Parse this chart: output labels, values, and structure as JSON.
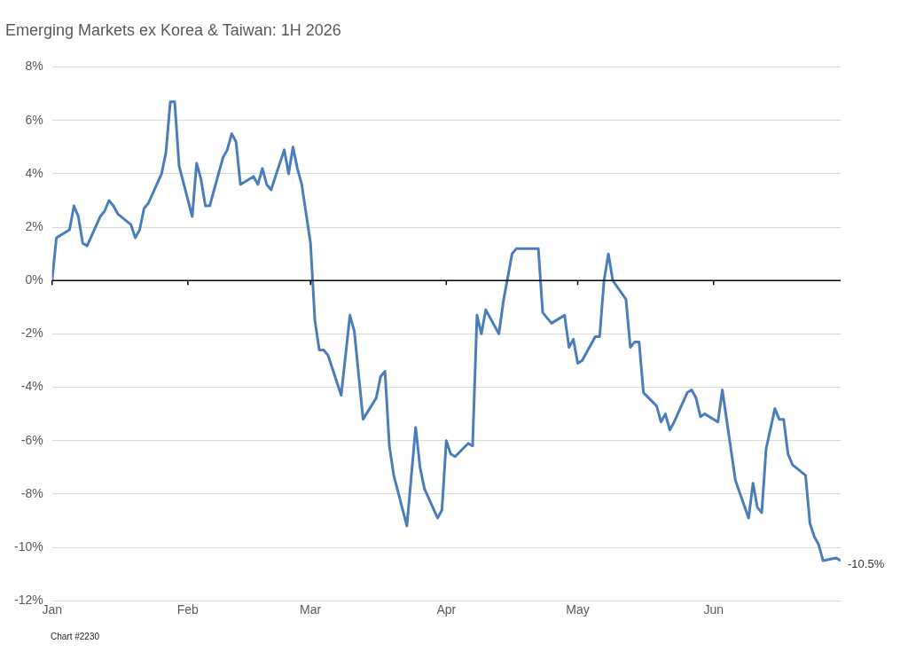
{
  "chart_data": {
    "type": "line",
    "title": "Emerging Markets ex Korea & Taiwan: 1H 2026",
    "xlim": [
      "2026-01-01",
      "2026-06-30"
    ],
    "xticks": [
      {
        "value": "2026-01-01",
        "label": "Jan"
      },
      {
        "value": "2026-02-01",
        "label": "Feb"
      },
      {
        "value": "2026-03-01",
        "label": "Mar"
      },
      {
        "value": "2026-04-01",
        "label": "Apr"
      },
      {
        "value": "2026-05-01",
        "label": "May"
      },
      {
        "value": "2026-06-01",
        "label": "Jun"
      }
    ],
    "ylim": [
      -12,
      8
    ],
    "yticks": [
      {
        "value": -12,
        "label": "-12%"
      },
      {
        "value": -10,
        "label": "-10%"
      },
      {
        "value": -8,
        "label": "-8%"
      },
      {
        "value": -6,
        "label": "-6%"
      },
      {
        "value": -4,
        "label": "-4%"
      },
      {
        "value": -2,
        "label": "-2%"
      },
      {
        "value": 0,
        "label": "0%"
      },
      {
        "value": 2,
        "label": "2%"
      },
      {
        "value": 4,
        "label": "4%"
      },
      {
        "value": 6,
        "label": "6%"
      },
      {
        "value": 8,
        "label": "8%"
      }
    ],
    "grid": "y",
    "ref_lines": [
      {
        "axis": "y",
        "value": 0,
        "color": "#000000"
      }
    ],
    "annotations": [
      "Chart #2230"
    ],
    "series": [
      {
        "color": "#4a7ebb",
        "x": [
          "2026-01-01",
          "2026-01-02",
          "2026-01-05",
          "2026-01-06",
          "2026-01-07",
          "2026-01-08",
          "2026-01-09",
          "2026-01-12",
          "2026-01-13",
          "2026-01-14",
          "2026-01-15",
          "2026-01-16",
          "2026-01-19",
          "2026-01-20",
          "2026-01-21",
          "2026-01-22",
          "2026-01-23",
          "2026-01-26",
          "2026-01-27",
          "2026-01-28",
          "2026-01-29",
          "2026-01-30",
          "2026-02-02",
          "2026-02-03",
          "2026-02-04",
          "2026-02-05",
          "2026-02-06",
          "2026-02-09",
          "2026-02-10",
          "2026-02-11",
          "2026-02-12",
          "2026-02-13",
          "2026-02-16",
          "2026-02-17",
          "2026-02-18",
          "2026-02-19",
          "2026-02-20",
          "2026-02-23",
          "2026-02-24",
          "2026-02-25",
          "2026-02-26",
          "2026-02-27",
          "2026-03-01",
          "2026-03-02",
          "2026-03-03",
          "2026-03-04",
          "2026-03-05",
          "2026-03-08",
          "2026-03-10",
          "2026-03-11",
          "2026-03-13",
          "2026-03-16",
          "2026-03-17",
          "2026-03-18",
          "2026-03-19",
          "2026-03-20",
          "2026-03-23",
          "2026-03-25",
          "2026-03-26",
          "2026-03-27",
          "2026-03-30",
          "2026-03-31",
          "2026-04-01",
          "2026-04-02",
          "2026-04-03",
          "2026-04-06",
          "2026-04-07",
          "2026-04-08",
          "2026-04-09",
          "2026-04-10",
          "2026-04-13",
          "2026-04-14",
          "2026-04-16",
          "2026-04-17",
          "2026-04-22",
          "2026-04-23",
          "2026-04-25",
          "2026-04-28",
          "2026-04-29",
          "2026-04-30",
          "2026-05-01",
          "2026-05-02",
          "2026-05-05",
          "2026-05-06",
          "2026-05-07",
          "2026-05-08",
          "2026-05-09",
          "2026-05-12",
          "2026-05-13",
          "2026-05-14",
          "2026-05-15",
          "2026-05-16",
          "2026-05-19",
          "2026-05-20",
          "2026-05-21",
          "2026-05-22",
          "2026-05-23",
          "2026-05-26",
          "2026-05-27",
          "2026-05-28",
          "2026-05-29",
          "2026-05-30",
          "2026-06-02",
          "2026-06-03",
          "2026-06-06",
          "2026-06-09",
          "2026-06-10",
          "2026-06-11",
          "2026-06-12",
          "2026-06-13",
          "2026-06-15",
          "2026-06-16",
          "2026-06-17",
          "2026-06-18",
          "2026-06-19",
          "2026-06-22",
          "2026-06-23",
          "2026-06-24",
          "2026-06-25",
          "2026-06-26",
          "2026-06-29",
          "2026-06-30"
        ],
        "values": [
          0,
          1.6,
          1.9,
          2.8,
          2.4,
          1.4,
          1.3,
          2.4,
          2.6,
          3.0,
          2.8,
          2.5,
          2.1,
          1.6,
          1.9,
          2.7,
          2.9,
          4.0,
          4.8,
          6.7,
          6.7,
          4.3,
          2.4,
          4.4,
          3.8,
          2.8,
          2.8,
          4.6,
          4.9,
          5.5,
          5.2,
          3.6,
          3.9,
          3.6,
          4.2,
          3.6,
          3.4,
          4.9,
          4.0,
          5.0,
          4.2,
          3.6,
          1.4,
          -1.5,
          -2.6,
          -2.6,
          -2.8,
          -4.3,
          -1.3,
          -1.9,
          -5.2,
          -4.4,
          -3.6,
          -3.4,
          -6.2,
          -7.3,
          -9.2,
          -5.5,
          -7.0,
          -7.8,
          -8.9,
          -8.6,
          -6.0,
          -6.5,
          -6.6,
          -6.1,
          -6.2,
          -1.3,
          -2.0,
          -1.1,
          -2.0,
          -0.8,
          1.0,
          1.2,
          1.2,
          -1.2,
          -1.6,
          -1.3,
          -2.5,
          -2.2,
          -3.1,
          -3.0,
          -2.1,
          -2.1,
          0,
          1.0,
          0,
          -0.7,
          -2.5,
          -2.3,
          -2.3,
          -4.2,
          -4.7,
          -5.3,
          -5.0,
          -5.6,
          -5.3,
          -4.2,
          -4.1,
          -4.4,
          -5.1,
          -5.0,
          -5.3,
          -4.1,
          -7.5,
          -8.9,
          -7.6,
          -8.5,
          -8.7,
          -6.3,
          -4.8,
          -5.2,
          -5.2,
          -6.5,
          -6.9,
          -7.3,
          -9.1,
          -9.6,
          -9.9,
          -10.5,
          -10.4,
          -10.5
        ],
        "value_labels": [
          null,
          null,
          null,
          null,
          null,
          null,
          null,
          null,
          null,
          null,
          null,
          null,
          null,
          null,
          null,
          null,
          null,
          null,
          null,
          null,
          null,
          null,
          null,
          null,
          null,
          null,
          null,
          null,
          null,
          null,
          null,
          null,
          null,
          null,
          null,
          null,
          null,
          null,
          null,
          null,
          null,
          null,
          null,
          null,
          null,
          null,
          null,
          null,
          null,
          null,
          null,
          null,
          null,
          null,
          null,
          null,
          null,
          null,
          null,
          null,
          null,
          null,
          null,
          null,
          null,
          null,
          null,
          null,
          null,
          null,
          null,
          null,
          null,
          null,
          null,
          null,
          null,
          null,
          null,
          null,
          null,
          null,
          null,
          null,
          null,
          null,
          null,
          null,
          null,
          null,
          null,
          null,
          null,
          null,
          null,
          null,
          null,
          null,
          null,
          null,
          null,
          null,
          null,
          null,
          null,
          null,
          null,
          null,
          null,
          null,
          null,
          null,
          null,
          null,
          null,
          null,
          null,
          null,
          null,
          null,
          null,
          "-10.5%"
        ]
      }
    ]
  }
}
